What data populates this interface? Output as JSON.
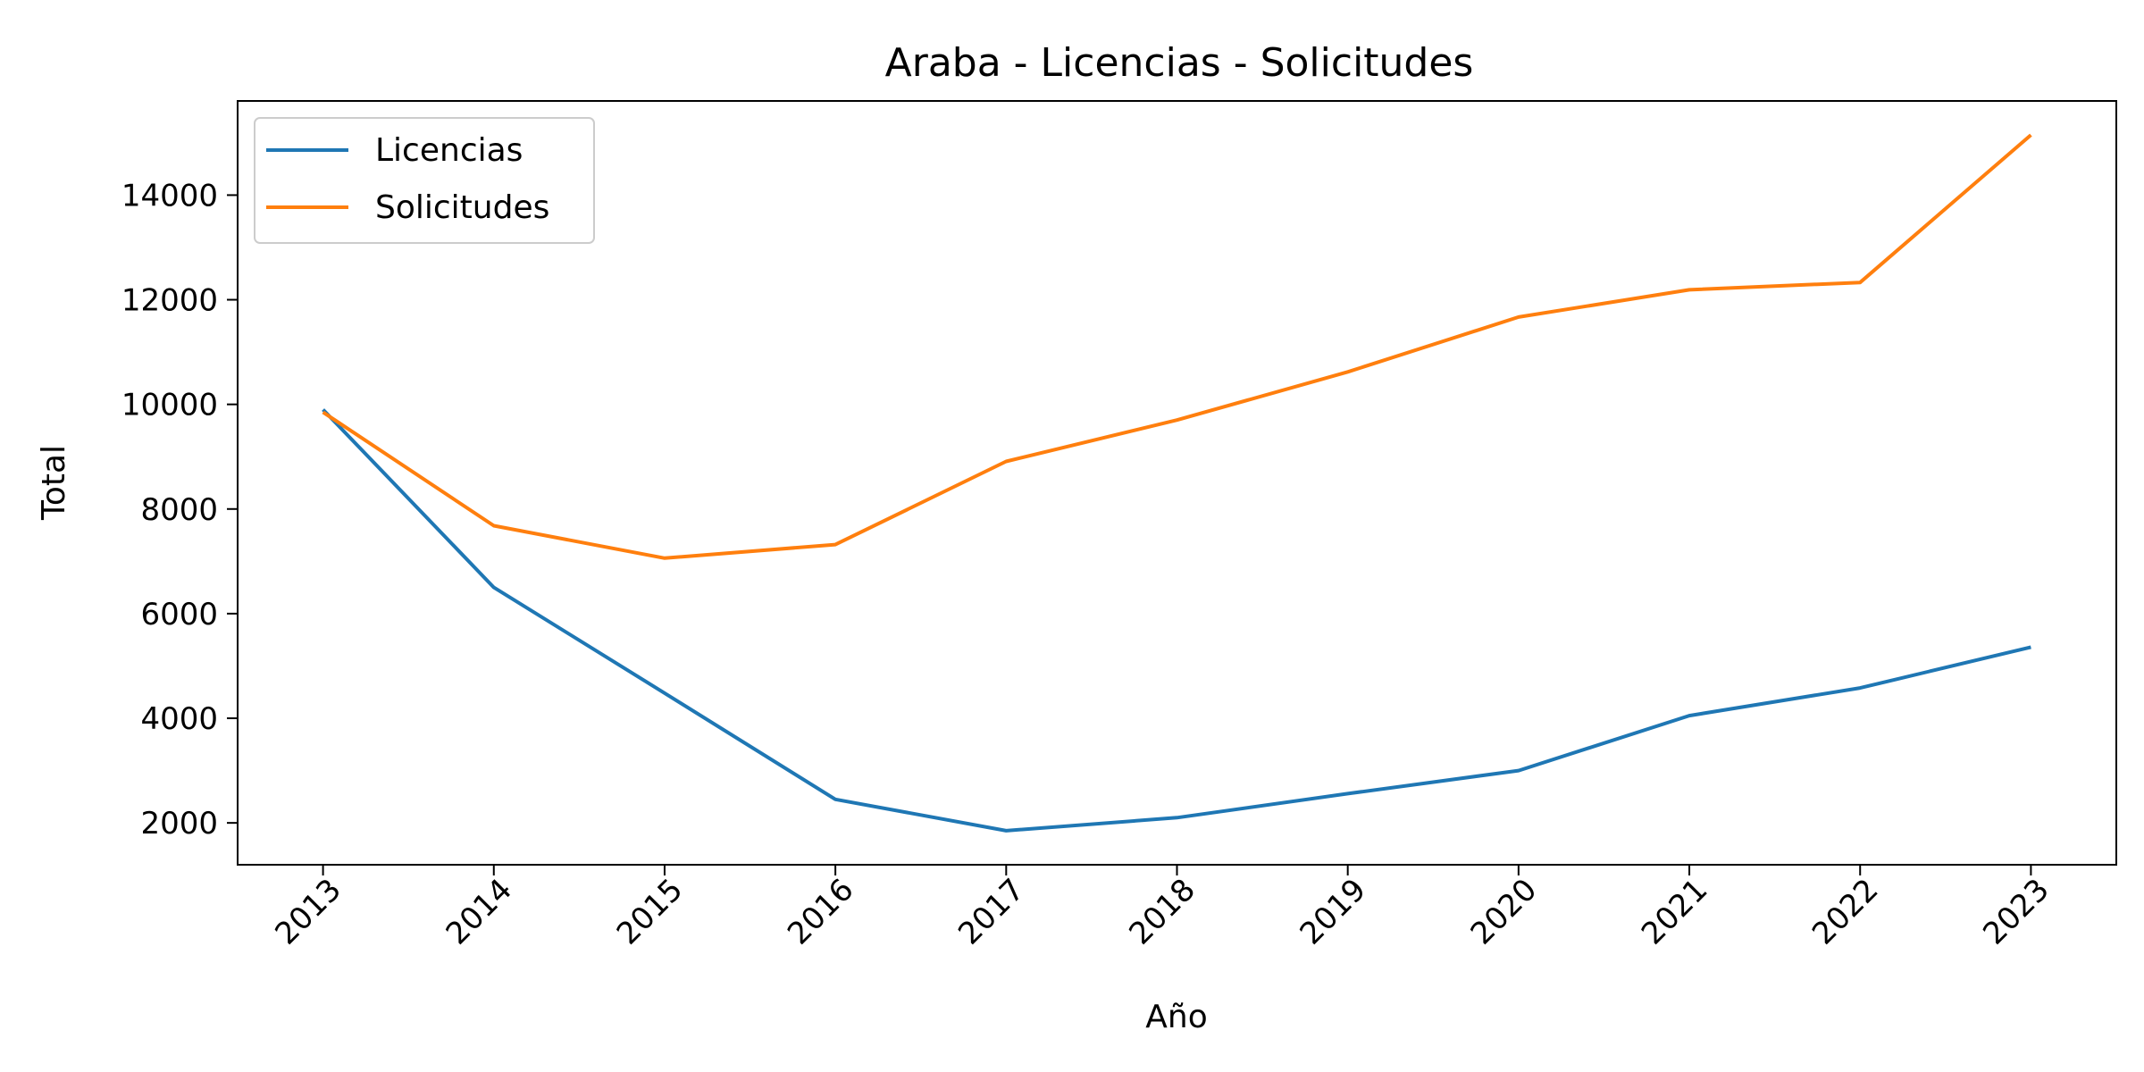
{
  "chart_data": {
    "type": "line",
    "title": "Araba - Licencias - Solicitudes",
    "xlabel": "Año",
    "ylabel": "Total",
    "x": [
      2013,
      2014,
      2015,
      2016,
      2017,
      2018,
      2019,
      2020,
      2021,
      2022,
      2023
    ],
    "x_tick_labels": [
      "2013",
      "2014",
      "2015",
      "2016",
      "2017",
      "2018",
      "2019",
      "2020",
      "2021",
      "2022",
      "2023"
    ],
    "y_ticks": [
      2000,
      4000,
      6000,
      8000,
      10000,
      12000,
      14000
    ],
    "y_tick_labels": [
      "2000",
      "4000",
      "6000",
      "8000",
      "10000",
      "12000",
      "14000"
    ],
    "xlim": [
      2012.5,
      2023.5
    ],
    "ylim": [
      1200,
      15800
    ],
    "grid": false,
    "legend_position": "upper-left",
    "series": [
      {
        "name": "Licencias",
        "color": "#1f77b4",
        "values": [
          9900,
          6500,
          4480,
          2450,
          1850,
          2100,
          2560,
          3000,
          4050,
          4580,
          5360
        ]
      },
      {
        "name": "Solicitudes",
        "color": "#ff7f0e",
        "values": [
          9850,
          7680,
          7060,
          7320,
          8910,
          9700,
          10620,
          11670,
          12190,
          12330,
          15150
        ]
      }
    ]
  }
}
